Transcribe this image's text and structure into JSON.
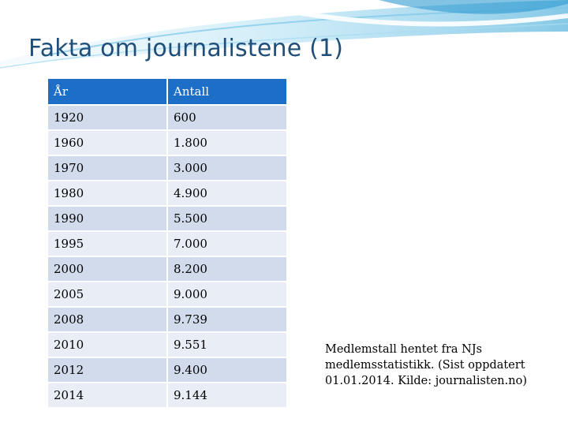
{
  "slide": {
    "title": "Fakta om journalistene (1)",
    "table": {
      "headers": [
        "År",
        "Antall"
      ],
      "rows": [
        [
          "1920",
          "600"
        ],
        [
          "1960",
          "1.800"
        ],
        [
          "1970",
          "3.000"
        ],
        [
          "1980",
          "4.900"
        ],
        [
          "1990",
          "5.500"
        ],
        [
          "1995",
          "7.000"
        ],
        [
          "2000",
          "8.200"
        ],
        [
          "2005",
          "9.000"
        ],
        [
          "2008",
          "9.739"
        ],
        [
          "2010",
          "9.551"
        ],
        [
          "2012",
          "9.400"
        ],
        [
          "2014",
          "9.144"
        ]
      ]
    },
    "note": " Medlemstall hentet fra NJs medlemsstatistikk. (Sist oppdatert 01.01.2014. Kilde: journalisten.no)",
    "colors": {
      "header_bg": "#1c6ec6",
      "row_odd": "#d1dbeb",
      "row_even": "#e9eef6",
      "title": "#1f4e79",
      "accent_swoosh": "#3fa9d8"
    }
  }
}
